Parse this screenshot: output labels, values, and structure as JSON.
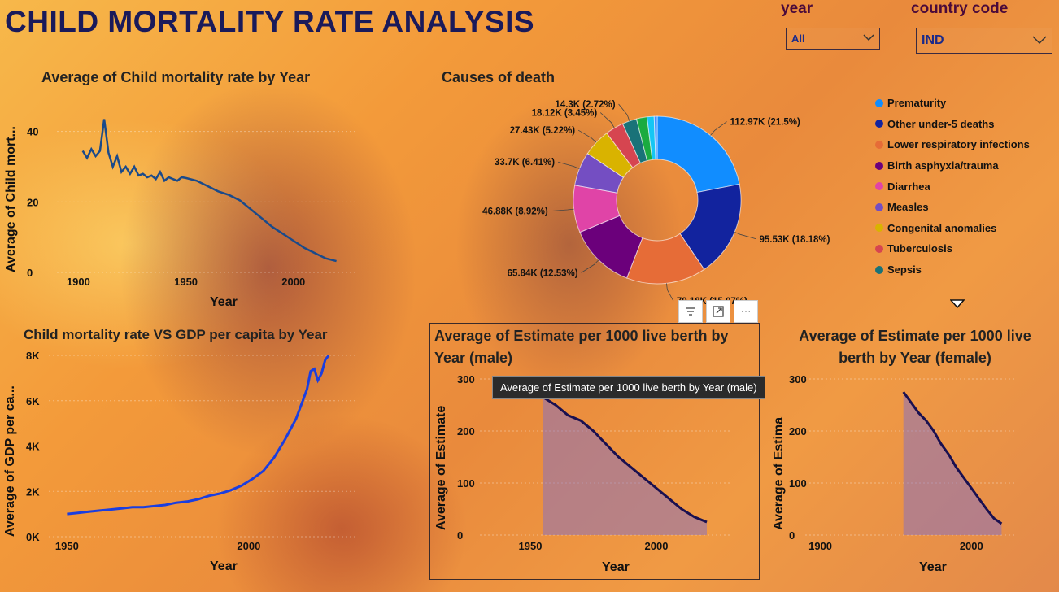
{
  "title": "CHILD MORTALITY RATE ANALYSIS",
  "slicers": {
    "year": {
      "label": "year",
      "value": "All"
    },
    "country": {
      "label": "country code",
      "value": "IND"
    }
  },
  "toolbar": {
    "more_label": "⋯"
  },
  "tooltip": "Average of Estimate per 1000 live berth by Year (male)",
  "chart_data": [
    {
      "type": "line",
      "title": "Average of Child mortality rate by Year",
      "xlabel": "Year",
      "ylabel": "Average of Child mort...",
      "xlim": [
        1890,
        2030
      ],
      "ylim": [
        0,
        45
      ],
      "xticks": [
        "1900",
        "1950",
        "2000"
      ],
      "yticks": [
        "0",
        "20",
        "40"
      ],
      "color": "#1a4a8a",
      "x": [
        1902,
        1904,
        1906,
        1908,
        1910,
        1912,
        1914,
        1916,
        1918,
        1920,
        1922,
        1924,
        1926,
        1928,
        1930,
        1932,
        1934,
        1936,
        1938,
        1940,
        1942,
        1944,
        1946,
        1948,
        1950,
        1955,
        1960,
        1965,
        1970,
        1975,
        1980,
        1985,
        1990,
        1995,
        2000,
        2005,
        2010,
        2015,
        2020
      ],
      "y": [
        34.5,
        32.5,
        35,
        33,
        34.5,
        43.5,
        34,
        30,
        33,
        28.5,
        30,
        28,
        30,
        27.5,
        28,
        27,
        27.5,
        26.5,
        28.5,
        26,
        27,
        26.5,
        26,
        27,
        26.8,
        26,
        24.5,
        23,
        22,
        20.5,
        18,
        15.5,
        13,
        11,
        9,
        7,
        5.5,
        4,
        3.2
      ]
    },
    {
      "type": "pie",
      "title": "Causes of death",
      "slices": [
        {
          "label": "Prematurity",
          "value": 112.97,
          "display": "112.97K (21.5%)",
          "color": "#118dff"
        },
        {
          "label": "Other under-5 deaths",
          "value": 95.53,
          "display": "95.53K (18.18%)",
          "color": "#12239e"
        },
        {
          "label": "Lower respiratory infections",
          "value": 79.18,
          "display": "79.18K (15.07%)",
          "color": "#e66c37"
        },
        {
          "label": "Birth asphyxia/trauma",
          "value": 65.84,
          "display": "65.84K (12.53%)",
          "color": "#6b007b"
        },
        {
          "label": "Diarrhea",
          "value": 46.88,
          "display": "46.88K (8.92%)",
          "color": "#e044a7"
        },
        {
          "label": "Measles",
          "value": 33.7,
          "display": "33.7K (6.41%)",
          "color": "#744ec2"
        },
        {
          "label": "Congenital anomalies",
          "value": 27.43,
          "display": "27.43K (5.22%)",
          "color": "#d9b300"
        },
        {
          "label": "Tuberculosis",
          "value": 18.12,
          "display": "18.12K (3.45%)",
          "color": "#d64550"
        },
        {
          "label": "Sepsis",
          "value": 14.3,
          "display": "14.3K (2.72%)",
          "color": "#197278"
        },
        {
          "label": "",
          "value": 10.5,
          "display": "",
          "color": "#1aab40"
        },
        {
          "label": "",
          "value": 7.0,
          "display": "",
          "color": "#15c6f4"
        },
        {
          "label": "",
          "value": 3.0,
          "display": "",
          "color": "#4092ff"
        }
      ]
    },
    {
      "type": "line",
      "title": "Child mortality rate VS GDP per capita by Year",
      "xlabel": "Year",
      "ylabel": "Average of GDP per ca...",
      "xlim": [
        1945,
        2030
      ],
      "ylim": [
        0,
        8000
      ],
      "xticks": [
        "1950",
        "2000"
      ],
      "yticks": [
        "0K",
        "2K",
        "4K",
        "6K",
        "8K"
      ],
      "color": "#1a3ee0",
      "x": [
        1950,
        1953,
        1956,
        1959,
        1962,
        1965,
        1968,
        1971,
        1974,
        1977,
        1980,
        1983,
        1986,
        1989,
        1992,
        1995,
        1998,
        2001,
        2004,
        2007,
        2010,
        2013,
        2016,
        2017,
        2018,
        2019,
        2020,
        2021,
        2022
      ],
      "y": [
        1000,
        1050,
        1100,
        1150,
        1200,
        1250,
        1300,
        1300,
        1350,
        1400,
        1500,
        1550,
        1650,
        1800,
        1900,
        2050,
        2250,
        2550,
        2900,
        3500,
        4300,
        5200,
        6500,
        7300,
        7400,
        6900,
        7200,
        7800,
        8000
      ]
    },
    {
      "type": "area",
      "title": "Average of Estimate per 1000 live berth by Year (male)",
      "xlabel": "Year",
      "ylabel": "Average of Estimate",
      "xlim": [
        1930,
        2030
      ],
      "ylim": [
        0,
        300
      ],
      "xticks": [
        "1950",
        "2000"
      ],
      "yticks": [
        "0",
        "100",
        "200",
        "300"
      ],
      "color": "#1a1050",
      "x": [
        1955,
        1960,
        1965,
        1970,
        1975,
        1980,
        1985,
        1990,
        1995,
        2000,
        2005,
        2010,
        2015,
        2020
      ],
      "y": [
        265,
        250,
        230,
        220,
        200,
        175,
        150,
        130,
        110,
        90,
        70,
        50,
        35,
        25
      ]
    },
    {
      "type": "area",
      "title": "Average of Estimate per 1000 live berth by Year (female)",
      "xlabel": "Year",
      "ylabel": "Average of Estima",
      "xlim": [
        1890,
        2030
      ],
      "ylim": [
        0,
        300
      ],
      "xticks": [
        "1900",
        "2000"
      ],
      "yticks": [
        "0",
        "100",
        "200",
        "300"
      ],
      "color": "#1a1050",
      "x": [
        1955,
        1960,
        1965,
        1970,
        1975,
        1980,
        1985,
        1990,
        1995,
        2000,
        2005,
        2010,
        2015,
        2020
      ],
      "y": [
        275,
        255,
        235,
        220,
        200,
        175,
        155,
        130,
        110,
        90,
        70,
        50,
        32,
        22
      ]
    }
  ]
}
